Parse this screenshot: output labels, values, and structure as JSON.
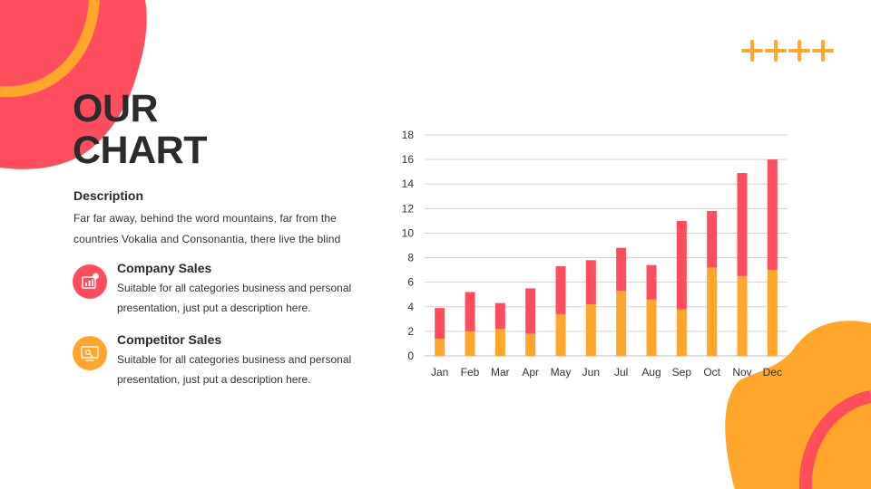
{
  "slide": {
    "title_line1": "OUR",
    "title_line2": "CHART",
    "description_heading": "Description",
    "description_body": "Far far away, behind the word mountains, far from the countries Vokalia and Consonantia, there live the blind"
  },
  "items": [
    {
      "heading": "Company Sales",
      "body": "Suitable for all categories business and personal presentation, just put a description here.",
      "icon": "chart-report-icon",
      "color": "#FF4D5E"
    },
    {
      "heading": "Competitor Sales",
      "body": "Suitable for all categories business and personal presentation, just put a description here.",
      "icon": "presentation-board-icon",
      "color": "#FFA62B"
    }
  ],
  "colors": {
    "red": "#FF4D5E",
    "orange": "#FFA62B",
    "text": "#2B2B2B"
  },
  "chart_data": {
    "type": "bar",
    "stacked": true,
    "categories": [
      "Jan",
      "Feb",
      "Mar",
      "Apr",
      "May",
      "Jun",
      "Jul",
      "Aug",
      "Sep",
      "Oct",
      "Nov",
      "Dec"
    ],
    "series": [
      {
        "values": [
          1.4,
          2.0,
          2.2,
          1.8,
          3.4,
          4.2,
          5.3,
          4.6,
          3.8,
          7.2,
          6.5,
          7.0
        ],
        "color": "#FFA62B"
      },
      {
        "values": [
          2.5,
          3.2,
          2.1,
          3.7,
          3.9,
          3.6,
          3.5,
          2.8,
          7.2,
          4.6,
          8.4,
          9.0
        ],
        "color": "#FF4D5E"
      }
    ],
    "yticks": [
      0,
      2,
      4,
      6,
      8,
      10,
      12,
      14,
      16,
      18
    ],
    "ylim": [
      0,
      18
    ],
    "grid": true,
    "legend": "none"
  }
}
